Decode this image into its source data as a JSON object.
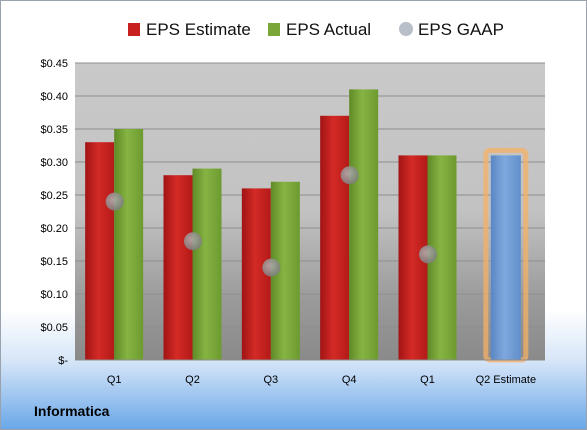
{
  "company": "Informatica",
  "chart_data": {
    "type": "bar",
    "categories": [
      "Q1",
      "Q2",
      "Q3",
      "Q4",
      "Q1",
      "Q2 Estimate"
    ],
    "series": [
      {
        "name": "EPS Estimate",
        "color": "#c8201e",
        "values": [
          0.33,
          0.28,
          0.26,
          0.37,
          0.31,
          null
        ]
      },
      {
        "name": "EPS Actual",
        "color": "#7aa637",
        "values": [
          0.35,
          0.29,
          0.27,
          0.41,
          0.31,
          null
        ]
      },
      {
        "name": "EPS GAAP",
        "color": "#9aa3ad",
        "marker": "circle",
        "values": [
          0.24,
          0.18,
          0.14,
          0.28,
          0.16,
          null
        ]
      },
      {
        "name": "Q2 Estimate",
        "color": "#6e9bd3",
        "highlight": "#f4b066",
        "values": [
          null,
          null,
          null,
          null,
          null,
          0.31
        ]
      }
    ],
    "ylim": [
      0,
      0.45
    ],
    "yticks": [
      0,
      0.05,
      0.1,
      0.15,
      0.2,
      0.25,
      0.3,
      0.35,
      0.4,
      0.45
    ],
    "ytick_labels": [
      "$-",
      "$0.05",
      "$0.10",
      "$0.15",
      "$0.20",
      "$0.25",
      "$0.30",
      "$0.35",
      "$0.40",
      "$0.45"
    ],
    "legend": {
      "position": "top",
      "entries": [
        "EPS Estimate",
        "EPS Actual",
        "EPS GAAP"
      ]
    },
    "grid": true
  }
}
